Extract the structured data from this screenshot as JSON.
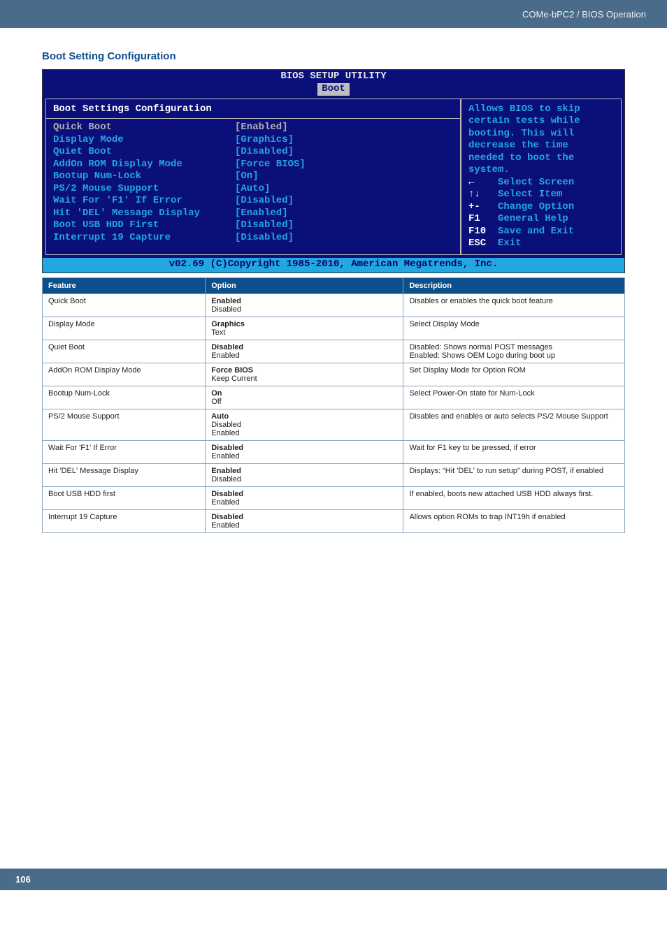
{
  "header": {
    "breadcrumb": "COMe-bPC2 / BIOS Operation"
  },
  "section": {
    "title": "Boot Setting Configuration"
  },
  "bios": {
    "title_line1": "BIOS SETUP UTILITY",
    "tab": "Boot",
    "left_heading": "Boot Settings Configuration",
    "selected": {
      "label": "Quick Boot",
      "value": "[Enabled]"
    },
    "items": [
      {
        "label": "Display Mode",
        "value": "[Graphics]"
      },
      {
        "label": "Quiet Boot",
        "value": "[Disabled]"
      },
      {
        "label": "AddOn ROM Display Mode",
        "value": "[Force BIOS]"
      },
      {
        "label": "Bootup Num-Lock",
        "value": "[On]"
      },
      {
        "label": "PS/2 Mouse Support",
        "value": "[Auto]"
      },
      {
        "label": "Wait For 'F1' If Error",
        "value": "[Disabled]"
      },
      {
        "label": "Hit 'DEL' Message Display",
        "value": "[Enabled]"
      },
      {
        "label": "Boot USB HDD First",
        "value": "[Disabled]"
      },
      {
        "label": "Interrupt 19 Capture",
        "value": "[Disabled]"
      }
    ],
    "help": {
      "l1": "Allows BIOS to skip",
      "l2": "certain tests while",
      "l3": "booting. This will",
      "l4": "decrease the time",
      "l5": "needed to boot the",
      "l6": "system."
    },
    "nav": [
      {
        "key": "←",
        "label": "Select Screen"
      },
      {
        "key": "↑↓",
        "label": "Select Item"
      },
      {
        "key": "+-",
        "label": "Change Option"
      },
      {
        "key": "F1",
        "label": "General Help"
      },
      {
        "key": "F10",
        "label": "Save and Exit"
      },
      {
        "key": "ESC",
        "label": "Exit"
      }
    ],
    "footer": "v02.69 (C)Copyright 1985-2010, American Megatrends, Inc.",
    "colors": {
      "bg": "#0b0f7a",
      "tab_bg": "#bfbfbf",
      "value": "#22a7e0",
      "selected": "#b0b0b0",
      "border": "#bfbfbf",
      "footer_bg": "#22a7e0",
      "footer_fg": "#0b006b"
    }
  },
  "table": {
    "headers": {
      "feature": "Feature",
      "option": "Option",
      "description": "Description"
    },
    "rows": [
      {
        "feature": "Quick Boot",
        "opt_b": "Enabled",
        "opt_r": "Disabled",
        "desc": "Disables or enables the quick boot feature"
      },
      {
        "feature": "Display Mode",
        "opt_b": "Graphics",
        "opt_r": "Text",
        "desc": "Select Display Mode"
      },
      {
        "feature": "Quiet Boot",
        "opt_b": "Disabled",
        "opt_r": "Enabled",
        "desc": "Disabled: Shows normal POST messages\nEnabled: Shows OEM Logo during boot up"
      },
      {
        "feature": "AddOn ROM Display Mode",
        "opt_b": "Force BIOS",
        "opt_r": "Keep Current",
        "desc": "Set Display Mode for Option ROM"
      },
      {
        "feature": "Bootup Num-Lock",
        "opt_b": "On",
        "opt_r": "Off",
        "desc": "Select Power-On state for Num-Lock"
      },
      {
        "feature": "PS/2 Mouse Support",
        "opt_b": "Auto",
        "opt_r": "Disabled\nEnabled",
        "desc": "Disables and enables or auto selects PS/2 Mouse Support"
      },
      {
        "feature": "Wait For 'F1' If Error",
        "opt_b": "Disabled",
        "opt_r": "Enabled",
        "desc": "Wait for F1 key to be pressed, if error"
      },
      {
        "feature": "Hit 'DEL' Message Display",
        "opt_b": "Enabled",
        "opt_r": "Disabled",
        "desc": "Displays: “Hit 'DEL' to run setup” during POST, if enabled"
      },
      {
        "feature": "Boot USB HDD first",
        "opt_b": "Disabled",
        "opt_r": "Enabled",
        "desc": "If enabled, boots new attached USB HDD always first."
      },
      {
        "feature": "Interrupt 19 Capture",
        "opt_b": "Disabled",
        "opt_r": "Enabled",
        "desc": "Allows option ROMs to trap INT19h if enabled"
      }
    ],
    "colors": {
      "header_bg": "#0d4f8b",
      "header_fg": "#ffffff",
      "border": "#8aa4c0"
    }
  },
  "footer": {
    "page_number": "106",
    "bg": "#4a6b8a"
  }
}
